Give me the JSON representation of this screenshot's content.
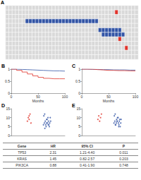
{
  "chart_data": [
    {
      "type": "heatmap",
      "title": "A",
      "colors": [
        "#d9d9d9",
        "#3355a6",
        "#e0332b"
      ],
      "tick_labels": false,
      "cells": [
        [
          0,
          0,
          0,
          0,
          0,
          0,
          0,
          0,
          0,
          0,
          0,
          0,
          0,
          0,
          0,
          0,
          0,
          0,
          0,
          0,
          0,
          0,
          0,
          0,
          0,
          0,
          0,
          0,
          0,
          0,
          0,
          0,
          0,
          0,
          0,
          0,
          0,
          0,
          0,
          0
        ],
        [
          0,
          0,
          0,
          0,
          0,
          0,
          0,
          0,
          0,
          0,
          0,
          0,
          0,
          0,
          0,
          0,
          0,
          0,
          0,
          0,
          0,
          0,
          0,
          0,
          0,
          0,
          0,
          0,
          0,
          0,
          0,
          0,
          0,
          2,
          0,
          0,
          0,
          0,
          0,
          0
        ],
        [
          0,
          0,
          0,
          0,
          0,
          0,
          0,
          0,
          0,
          0,
          0,
          0,
          0,
          0,
          0,
          0,
          0,
          0,
          0,
          0,
          0,
          0,
          0,
          0,
          0,
          0,
          0,
          0,
          0,
          0,
          0,
          0,
          0,
          0,
          0,
          0,
          0,
          0,
          0,
          0
        ],
        [
          0,
          0,
          0,
          0,
          0,
          0,
          1,
          1,
          1,
          1,
          1,
          1,
          1,
          1,
          1,
          1,
          1,
          1,
          1,
          1,
          1,
          1,
          1,
          1,
          1,
          1,
          1,
          1,
          0,
          0,
          0,
          0,
          0,
          0,
          0,
          0,
          0,
          0,
          0,
          0
        ],
        [
          0,
          0,
          0,
          0,
          0,
          0,
          0,
          0,
          0,
          0,
          0,
          0,
          0,
          0,
          0,
          0,
          0,
          0,
          0,
          0,
          0,
          0,
          0,
          0,
          0,
          0,
          0,
          0,
          0,
          0,
          0,
          0,
          0,
          0,
          0,
          0,
          0,
          0,
          0,
          0
        ],
        [
          0,
          0,
          0,
          0,
          0,
          0,
          0,
          0,
          0,
          0,
          0,
          0,
          0,
          0,
          0,
          0,
          0,
          0,
          0,
          0,
          0,
          0,
          0,
          0,
          0,
          0,
          0,
          0,
          1,
          1,
          1,
          1,
          1,
          1,
          1,
          0,
          0,
          0,
          0,
          0
        ],
        [
          0,
          0,
          0,
          0,
          0,
          0,
          0,
          0,
          0,
          0,
          0,
          0,
          0,
          0,
          0,
          0,
          0,
          0,
          0,
          0,
          0,
          0,
          0,
          0,
          0,
          0,
          0,
          0,
          0,
          1,
          1,
          1,
          1,
          1,
          1,
          1,
          0,
          0,
          0,
          0
        ],
        [
          0,
          0,
          0,
          0,
          0,
          0,
          0,
          0,
          0,
          0,
          0,
          0,
          0,
          0,
          0,
          0,
          0,
          0,
          0,
          0,
          0,
          0,
          0,
          0,
          0,
          0,
          0,
          0,
          0,
          0,
          0,
          0,
          0,
          0,
          2,
          0,
          0,
          0,
          0,
          0
        ],
        [
          0,
          0,
          0,
          0,
          0,
          0,
          0,
          0,
          0,
          0,
          0,
          0,
          0,
          0,
          0,
          0,
          0,
          0,
          0,
          0,
          0,
          0,
          0,
          0,
          0,
          0,
          0,
          0,
          0,
          0,
          0,
          0,
          0,
          0,
          0,
          0,
          0,
          0,
          0,
          0
        ],
        [
          0,
          0,
          0,
          0,
          0,
          0,
          0,
          0,
          0,
          0,
          0,
          0,
          0,
          0,
          0,
          0,
          0,
          0,
          0,
          0,
          0,
          0,
          0,
          0,
          0,
          0,
          0,
          0,
          0,
          0,
          0,
          0,
          0,
          0,
          0,
          0,
          2,
          0,
          0,
          0
        ],
        [
          0,
          0,
          0,
          0,
          0,
          0,
          0,
          0,
          0,
          0,
          0,
          0,
          0,
          0,
          0,
          0,
          0,
          0,
          0,
          0,
          0,
          0,
          0,
          0,
          0,
          0,
          0,
          0,
          0,
          0,
          0,
          0,
          0,
          0,
          0,
          0,
          0,
          0,
          0,
          0
        ],
        [
          0,
          0,
          0,
          0,
          0,
          0,
          0,
          0,
          0,
          0,
          0,
          0,
          0,
          0,
          0,
          0,
          0,
          0,
          0,
          0,
          0,
          0,
          0,
          0,
          0,
          0,
          0,
          0,
          0,
          0,
          0,
          0,
          0,
          0,
          0,
          0,
          0,
          0,
          0,
          0
        ]
      ]
    },
    {
      "type": "line",
      "title": "B",
      "xlabel": "Months",
      "line_style": "step",
      "x": [
        0,
        10,
        20,
        30,
        40,
        50,
        60,
        70,
        80,
        90,
        100
      ],
      "xlim": [
        0,
        100
      ],
      "xticks": [
        0,
        50,
        100
      ],
      "ylim": [
        0,
        1
      ],
      "yticks": [
        0,
        0.5,
        1
      ],
      "series": [
        {
          "color": "#3355a6",
          "values": [
            1,
            0.99,
            0.98,
            0.97,
            0.96,
            0.95,
            0.94,
            0.93,
            0.93,
            0.92,
            0.92
          ]
        },
        {
          "color": "#e0332b",
          "values": [
            1,
            0.95,
            0.88,
            0.8,
            0.72,
            0.66,
            0.62,
            0.6,
            0.6,
            0.6,
            0.6
          ]
        }
      ]
    },
    {
      "type": "line",
      "title": "C",
      "xlabel": "Months",
      "line_style": "step",
      "x": [
        0,
        10,
        20,
        30,
        40,
        50,
        60,
        70,
        80,
        90,
        100
      ],
      "xlim": [
        0,
        100
      ],
      "xticks": [
        0,
        50,
        100
      ],
      "ylim": [
        0,
        1
      ],
      "yticks": [
        0,
        0.5,
        1
      ],
      "series": [
        {
          "color": "#3355a6",
          "values": [
            1,
            0.99,
            0.99,
            0.98,
            0.98,
            0.97,
            0.97,
            0.97,
            0.96,
            0.96,
            0.96
          ]
        },
        {
          "color": "#e0332b",
          "values": [
            1,
            1,
            0.98,
            0.97,
            0.95,
            0.95,
            0.94,
            0.94,
            0.93,
            0.93,
            0.93
          ]
        }
      ]
    },
    {
      "type": "scatter",
      "title": "D",
      "tick_labels": "y",
      "xlim": [
        0,
        3
      ],
      "ylim": [
        0,
        15
      ],
      "yticks": [
        0,
        5,
        10,
        15
      ],
      "series": [
        {
          "color": "#e0332b",
          "x": [
            0.9,
            0.95,
            1.0,
            1.05,
            1.1,
            1.0
          ],
          "values": [
            8,
            10,
            9,
            12,
            7,
            11
          ]
        },
        {
          "color": "#3355a6",
          "x": [
            1.8,
            1.85,
            1.9,
            1.95,
            2.0,
            2.05,
            2.1,
            2.15,
            2.2,
            1.82,
            1.88,
            1.93,
            1.98,
            2.03,
            2.08,
            2.13,
            2.18,
            1.87,
            1.97,
            2.07
          ],
          "values": [
            6,
            7,
            8,
            5,
            9,
            10,
            6,
            7,
            8,
            11,
            4,
            6,
            9,
            7,
            8,
            5,
            10,
            12,
            7,
            6
          ]
        }
      ]
    },
    {
      "type": "scatter",
      "title": "E",
      "tick_labels": "y",
      "xlim": [
        0,
        3
      ],
      "ylim": [
        0,
        15
      ],
      "yticks": [
        0,
        5,
        10,
        15
      ],
      "series": [
        {
          "color": "#e0332b",
          "x": [
            0.9,
            0.95,
            1.0,
            1.05,
            1.1
          ],
          "values": [
            9,
            11,
            8,
            10,
            12
          ]
        },
        {
          "color": "#3355a6",
          "x": [
            1.8,
            1.85,
            1.9,
            1.95,
            2.0,
            2.05,
            2.1,
            2.15,
            2.2,
            1.82,
            1.88,
            1.93,
            1.98,
            2.03,
            2.08,
            2.13,
            2.18,
            1.87,
            1.97,
            2.07
          ],
          "values": [
            7,
            8,
            6,
            9,
            10,
            7,
            8,
            5,
            9,
            11,
            6,
            7,
            8,
            10,
            6,
            9,
            7,
            12,
            8,
            5
          ]
        }
      ]
    }
  ],
  "table": {
    "header": [
      "Gene",
      "HR",
      "95% CI",
      "P"
    ],
    "rows": [
      [
        "TP53",
        "2.31",
        "1.21-4.40",
        "0.011"
      ],
      [
        "KRAS",
        "1.45",
        "0.82-2.57",
        "0.203"
      ],
      [
        "PIK3CA",
        "0.88",
        "0.41-1.90",
        "0.748"
      ]
    ]
  }
}
